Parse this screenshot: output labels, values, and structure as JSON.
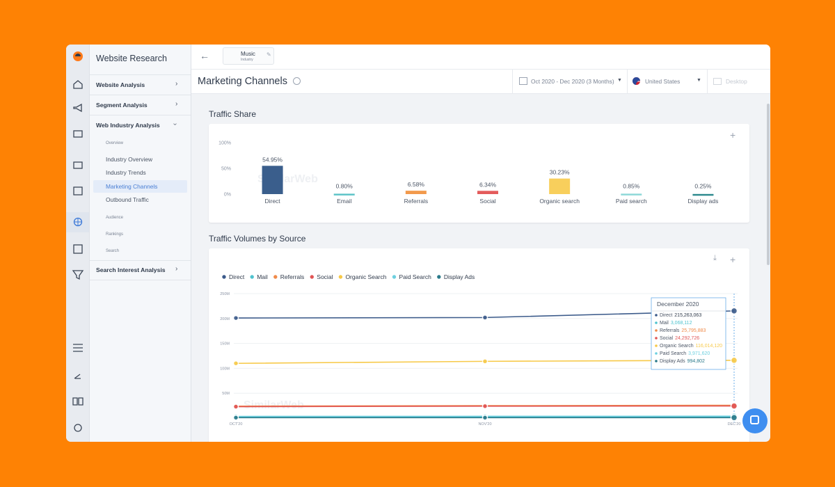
{
  "sidebar": {
    "title": "Website Research",
    "items": [
      "Website Analysis",
      "Segment Analysis",
      "Web Industry Analysis",
      "Overview",
      "Industry Overview",
      "Industry Trends",
      "Marketing Channels",
      "Outbound Traffic",
      "Audience",
      "Rankings",
      "Search",
      "Search Interest Analysis"
    ]
  },
  "header": {
    "breadcrumb": {
      "name": "Music",
      "kind": "Industry"
    },
    "title": "Marketing Channels",
    "date_range": "Oct 2020 - Dec 2020 (3 Months)",
    "country": "United States",
    "device": "Desktop"
  },
  "chart_data": [
    {
      "type": "bar",
      "title": "Traffic Share",
      "categories": [
        "Direct",
        "Email",
        "Referrals",
        "Social",
        "Organic search",
        "Paid search",
        "Display ads"
      ],
      "values": [
        54.95,
        0.8,
        6.58,
        6.34,
        30.23,
        0.85,
        0.25
      ],
      "value_labels": [
        "54.95%",
        "0.80%",
        "6.58%",
        "6.34%",
        "30.23%",
        "0.85%",
        "0.25%"
      ],
      "colors": [
        "#3a5e8c",
        "#5ec4c8",
        "#f29a4c",
        "#e35b5b",
        "#f8cf5c",
        "#8ed8d8",
        "#2f8a8f"
      ],
      "ylim": [
        0,
        100
      ],
      "yticks": [
        {
          "value": 0,
          "label": "0%"
        },
        {
          "value": 50,
          "label": "50%"
        },
        {
          "value": 100,
          "label": "100%"
        }
      ],
      "grid": false
    },
    {
      "type": "line",
      "title": "Traffic Volumes by Source",
      "categories": [
        "OCT'20",
        "NOV'20",
        "DEC'20"
      ],
      "series": [
        {
          "name": "Direct",
          "color": "#3b5a8a",
          "values": [
            201000000,
            202000000,
            215263063
          ],
          "value_labels": [
            null,
            null,
            "215,263,063"
          ]
        },
        {
          "name": "Mail",
          "color": "#4fc3cf",
          "values": [
            3000000,
            3000000,
            3068112
          ],
          "value_labels": [
            null,
            null,
            "3,068,112"
          ]
        },
        {
          "name": "Referrals",
          "color": "#f08b4a",
          "values": [
            24000000,
            25000000,
            25795883
          ],
          "value_labels": [
            null,
            null,
            "25,795,883"
          ]
        },
        {
          "name": "Social",
          "color": "#e15555",
          "values": [
            23000000,
            24000000,
            24292726
          ],
          "value_labels": [
            null,
            null,
            "24,292,726"
          ]
        },
        {
          "name": "Organic Search",
          "color": "#f7c948",
          "values": [
            110000000,
            114000000,
            116014120
          ],
          "value_labels": [
            null,
            null,
            "116,014,120"
          ]
        },
        {
          "name": "Paid Search",
          "color": "#6ed0e0",
          "values": [
            3500000,
            3700000,
            3971620
          ],
          "value_labels": [
            null,
            null,
            "3,971,620"
          ]
        },
        {
          "name": "Display Ads",
          "color": "#2a7a8a",
          "values": [
            900000,
            950000,
            994802
          ],
          "value_labels": [
            null,
            null,
            "994,802"
          ]
        }
      ],
      "ylim": [
        0,
        250000000
      ],
      "yticks": [
        {
          "value": 50000000,
          "label": "50M"
        },
        {
          "value": 100000000,
          "label": "100M"
        },
        {
          "value": 150000000,
          "label": "150M"
        },
        {
          "value": 200000000,
          "label": "200M"
        },
        {
          "value": 250000000,
          "label": "250M"
        }
      ],
      "grid": true,
      "tooltip": {
        "title": "December 2020"
      }
    }
  ]
}
